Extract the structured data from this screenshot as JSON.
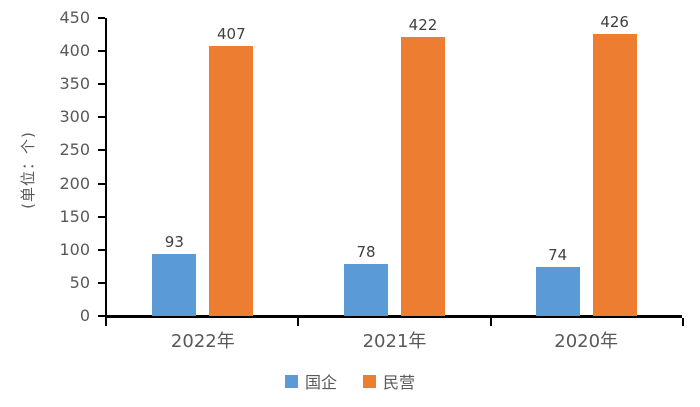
{
  "chart_data": {
    "type": "bar",
    "title": "",
    "categories": [
      "2022年",
      "2021年",
      "2020年"
    ],
    "series": [
      {
        "name": "国企",
        "color": "#5B9BD5",
        "values": [
          93,
          78,
          74
        ]
      },
      {
        "name": "民营",
        "color": "#ED7D31",
        "values": [
          407,
          422,
          426
        ]
      }
    ],
    "ylabel": "(单位：个)",
    "xlabel": "",
    "ylim": [
      0,
      450
    ],
    "ytick_step": 50,
    "ytick_labels": [
      "0",
      "50",
      "100",
      "150",
      "200",
      "250",
      "300",
      "350",
      "400",
      "450"
    ],
    "grid": false,
    "legend_position": "bottom",
    "data_labels_shown": true
  },
  "colors": {
    "background": "#FFFFFF",
    "axis_line": "#000000",
    "tick_text": "#595959",
    "category_text": "#595959",
    "value_label_text": "#404040",
    "series_blue": "#5B9BD5",
    "series_orange": "#ED7D31"
  }
}
